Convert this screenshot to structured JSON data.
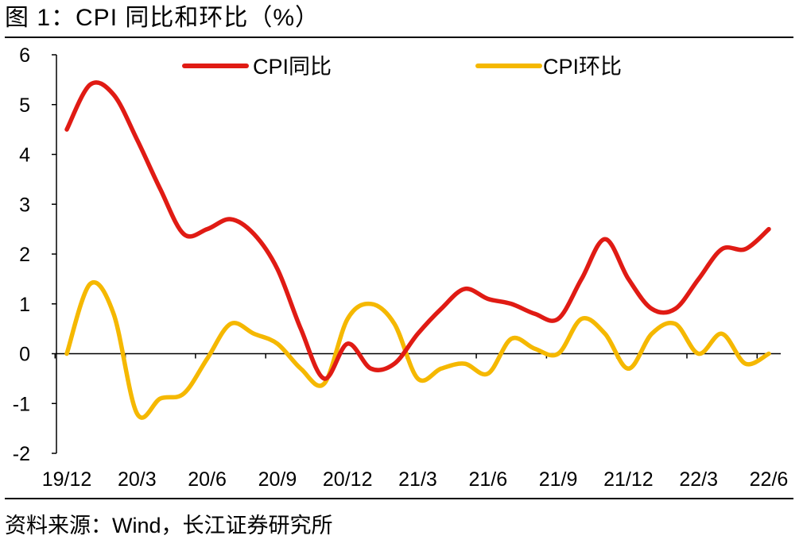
{
  "figure": {
    "title": "图 1：CPI 同比和环比（%）",
    "source": "资料来源：Wind，长江证券研究所"
  },
  "chart_data": {
    "type": "line",
    "title": "图 1：CPI 同比和环比（%）",
    "xlabel": "",
    "ylabel": "",
    "ylim": [
      -2,
      6
    ],
    "yticks": [
      -2,
      -1,
      0,
      1,
      2,
      3,
      4,
      5,
      6
    ],
    "x": [
      "19/12",
      "20/1",
      "20/2",
      "20/3",
      "20/4",
      "20/5",
      "20/6",
      "20/7",
      "20/8",
      "20/9",
      "20/10",
      "20/11",
      "20/12",
      "21/1",
      "21/2",
      "21/3",
      "21/4",
      "21/5",
      "21/6",
      "21/7",
      "21/8",
      "21/9",
      "21/10",
      "21/11",
      "21/12",
      "22/1",
      "22/2",
      "22/3",
      "22/4",
      "22/5",
      "22/6"
    ],
    "xtick_labels": [
      "19/12",
      "20/3",
      "20/6",
      "20/9",
      "20/12",
      "21/3",
      "21/6",
      "21/9",
      "21/12",
      "22/3",
      "22/6"
    ],
    "legend_position": "top",
    "series": [
      {
        "name": "CPI同比",
        "color": "#e01b14",
        "values": [
          4.5,
          5.4,
          5.2,
          4.3,
          3.3,
          2.4,
          2.5,
          2.7,
          2.4,
          1.7,
          0.5,
          -0.5,
          0.2,
          -0.3,
          -0.2,
          0.4,
          0.9,
          1.3,
          1.1,
          1.0,
          0.8,
          0.7,
          1.5,
          2.3,
          1.5,
          0.9,
          0.9,
          1.5,
          2.1,
          2.1,
          2.5
        ]
      },
      {
        "name": "CPI环比",
        "color": "#f5b800",
        "values": [
          0.0,
          1.4,
          0.8,
          -1.2,
          -0.9,
          -0.8,
          -0.1,
          0.6,
          0.4,
          0.2,
          -0.3,
          -0.6,
          0.7,
          1.0,
          0.6,
          -0.5,
          -0.3,
          -0.2,
          -0.4,
          0.3,
          0.1,
          0.0,
          0.7,
          0.4,
          -0.3,
          0.4,
          0.6,
          0.0,
          0.4,
          -0.2,
          0.0
        ]
      }
    ]
  }
}
